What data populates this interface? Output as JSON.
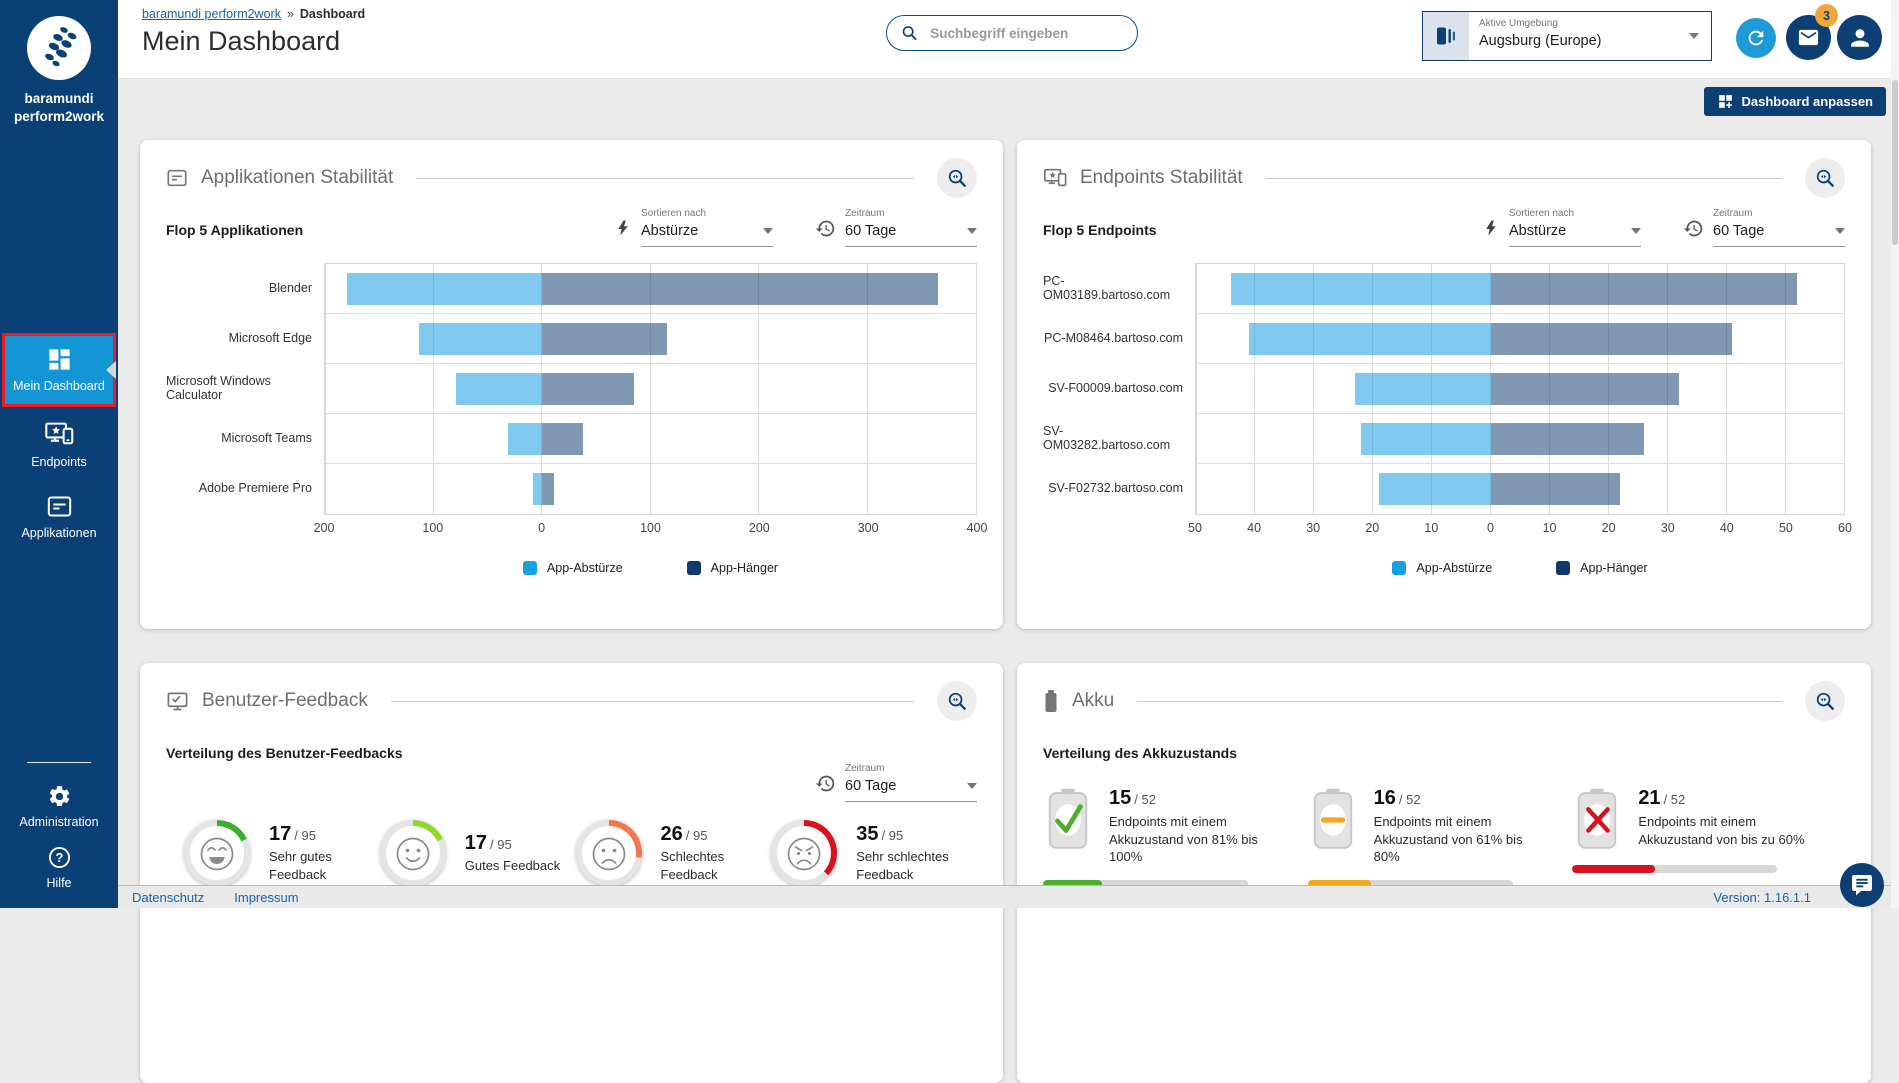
{
  "brand": {
    "line1": "baramundi",
    "line2": "perform2work"
  },
  "breadcrumb": {
    "root": "baramundi perform2work",
    "separator": "»",
    "current": "Dashboard"
  },
  "page_title": "Mein Dashboard",
  "search": {
    "placeholder": "Suchbegriff eingeben",
    "icon": "search-icon"
  },
  "environment": {
    "label": "Aktive Umgebung",
    "value": "Augsburg (Europe)",
    "icon": "environment-icon"
  },
  "header_actions": {
    "mail_badge": "3",
    "icons": [
      "refresh-icon",
      "mail-icon",
      "user-icon"
    ]
  },
  "customize_button": {
    "label": "Dashboard anpassen",
    "icon": "grid-plus-icon"
  },
  "sidebar": {
    "items": [
      {
        "label": "Mein Dashboard",
        "icon": "dashboard-grid-icon",
        "selected": true,
        "highlight_color": "#EC1C24"
      },
      {
        "label": "Endpoints",
        "icon": "endpoints-icon",
        "selected": false
      },
      {
        "label": "Applikationen",
        "icon": "applications-icon",
        "selected": false
      }
    ],
    "bottom_items": [
      {
        "label": "Administration",
        "icon": "gear-icon"
      },
      {
        "label": "Hilfe",
        "icon": "help-icon"
      }
    ]
  },
  "cards": {
    "app_stability": {
      "title": "Applikationen Stabilität",
      "subtitle": "Flop 5 Applikationen",
      "sort": {
        "label": "Sortieren nach",
        "value": "Abstürze",
        "icon": "lightning-icon"
      },
      "period": {
        "label": "Zeitraum",
        "value": "60 Tage",
        "icon": "history-icon"
      },
      "legend": [
        {
          "label": "App-Abstürze",
          "color": "#189FE1"
        },
        {
          "label": "App-Hänger",
          "color": "#0D3A6B"
        }
      ]
    },
    "endpoint_stability": {
      "title": "Endpoints Stabilität",
      "subtitle": "Flop 5 Endpoints",
      "sort": {
        "label": "Sortieren nach",
        "value": "Abstürze",
        "icon": "lightning-icon"
      },
      "period": {
        "label": "Zeitraum",
        "value": "60 Tage",
        "icon": "history-icon"
      },
      "legend": [
        {
          "label": "App-Abstürze",
          "color": "#189FE1"
        },
        {
          "label": "App-Hänger",
          "color": "#0D3A6B"
        }
      ]
    },
    "feedback": {
      "title": "Benutzer-Feedback",
      "subtitle": "Verteilung des Benutzer-Feedbacks",
      "period": {
        "label": "Zeitraum",
        "value": "60 Tage",
        "icon": "history-icon"
      },
      "gauges": [
        {
          "value": 17,
          "total": 95,
          "label": "Sehr gutes Feedback",
          "color": "#3BAE2B",
          "mood": "very-happy"
        },
        {
          "value": 17,
          "total": 95,
          "label": "Gutes Feedback",
          "color": "#8FD82A",
          "mood": "happy"
        },
        {
          "value": 26,
          "total": 95,
          "label": "Schlechtes Feedback",
          "color": "#F4764E",
          "mood": "sad"
        },
        {
          "value": 35,
          "total": 95,
          "label": "Sehr schlechtes Feedback",
          "color": "#D6131C",
          "mood": "angry"
        }
      ]
    },
    "battery": {
      "title": "Akku",
      "subtitle": "Verteilung des Akkuzustands",
      "items": [
        {
          "value": 15,
          "total": 52,
          "text": "Endpoints mit einem Akkuzustand von 81% bis 100%",
          "color": "#4CAF2A",
          "symbol": "check"
        },
        {
          "value": 16,
          "total": 52,
          "text": "Endpoints mit einem Akkuzustand von 61% bis 80%",
          "color": "#F2A71F",
          "symbol": "dash"
        },
        {
          "value": 21,
          "total": 52,
          "text": "Endpoints mit einem Akkuzustand von bis zu 60%",
          "color": "#D6131C",
          "symbol": "cross"
        }
      ]
    }
  },
  "chart_data": [
    {
      "type": "bar",
      "orientation": "horizontal-diverging",
      "title": "Flop 5 Applikationen",
      "categories": [
        "Blender",
        "Microsoft Edge",
        "Microsoft Windows Calculator",
        "Microsoft Teams",
        "Adobe Premiere Pro"
      ],
      "series": [
        {
          "name": "App-Abstürze",
          "side": "left",
          "color": "#189FE1",
          "values": [
            180,
            113,
            79,
            31,
            8
          ]
        },
        {
          "name": "App-Hänger",
          "side": "right",
          "color": "#0D3A6B",
          "values": [
            365,
            115,
            85,
            38,
            11
          ]
        }
      ],
      "xlim": [
        -200,
        400
      ],
      "x_ticks": [
        -200,
        -100,
        0,
        100,
        200,
        300,
        400
      ],
      "grid": true,
      "legend_position": "bottom"
    },
    {
      "type": "bar",
      "orientation": "horizontal-diverging",
      "title": "Flop 5 Endpoints",
      "categories": [
        "PC-OM03189.bartoso.com",
        "PC-M08464.bartoso.com",
        "SV-F00009.bartoso.com",
        "SV-OM03282.bartoso.com",
        "SV-F02732.bartoso.com"
      ],
      "series": [
        {
          "name": "App-Abstürze",
          "side": "left",
          "color": "#189FE1",
          "values": [
            44,
            41,
            23,
            22,
            19
          ]
        },
        {
          "name": "App-Hänger",
          "side": "right",
          "color": "#0D3A6B",
          "values": [
            52,
            41,
            32,
            26,
            22
          ]
        }
      ],
      "xlim": [
        -50,
        60
      ],
      "x_ticks": [
        -50,
        -40,
        -30,
        -20,
        -10,
        0,
        10,
        20,
        30,
        40,
        50,
        60
      ],
      "grid": true,
      "legend_position": "bottom"
    }
  ],
  "footer": {
    "links": [
      "Datenschutz",
      "Impressum"
    ],
    "version": "Version: 1.16.1.1"
  }
}
